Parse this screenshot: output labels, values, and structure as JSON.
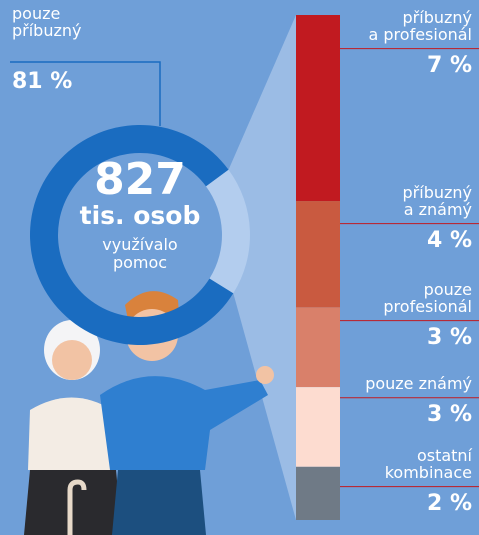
{
  "chart_data": {
    "type": "pie",
    "center_value": 827,
    "center_unit": "tis. osob",
    "center_caption": "využívalo\npomoc",
    "categories": [
      "pouze\npříbuzný"
    ],
    "values": [
      81
    ],
    "value_labels": [
      "81 %"
    ],
    "color": "#1a6cc0",
    "rest_color": "#b3cdee",
    "breakdown": {
      "categories": [
        "příbuzný\na profesionál",
        "příbuzný\na známý",
        "pouze\nprofesionál",
        "pouze známý",
        "ostatní\nkombinace"
      ],
      "values": [
        7,
        4,
        3,
        3,
        2
      ],
      "value_labels": [
        "7 %",
        "4 %",
        "3 %",
        "3 %",
        "2 %"
      ],
      "colors": [
        "#c11a20",
        "#c95a40",
        "#d9806a",
        "#fddcd0",
        "#6f7a86"
      ]
    }
  }
}
